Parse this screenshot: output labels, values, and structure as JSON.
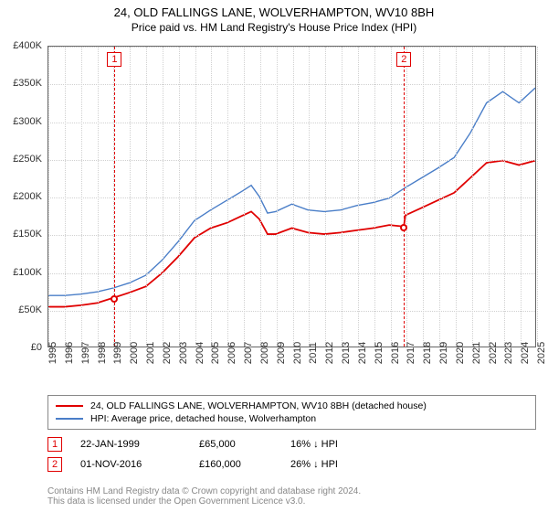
{
  "title": "24, OLD FALLINGS LANE, WOLVERHAMPTON, WV10 8BH",
  "subtitle": "Price paid vs. HM Land Registry's House Price Index (HPI)",
  "chart": {
    "type": "line",
    "background_color": "#ffffff",
    "grid_color": "#d0d0d0",
    "border_color": "#666666",
    "y": {
      "min": 0,
      "max": 400000,
      "step": 50000,
      "labels": [
        "£0",
        "£50K",
        "£100K",
        "£150K",
        "£200K",
        "£250K",
        "£300K",
        "£350K",
        "£400K"
      ],
      "fontsize": 11
    },
    "x": {
      "min": 1995,
      "max": 2025,
      "step": 1,
      "labels": [
        "1995",
        "1996",
        "1997",
        "1998",
        "1999",
        "2000",
        "2001",
        "2002",
        "2003",
        "2004",
        "2005",
        "2006",
        "2007",
        "2008",
        "2009",
        "2010",
        "2011",
        "2012",
        "2013",
        "2014",
        "2015",
        "2016",
        "2017",
        "2018",
        "2019",
        "2020",
        "2021",
        "2022",
        "2023",
        "2024",
        "2025"
      ],
      "fontsize": 11
    },
    "series": [
      {
        "name": "24, OLD FALLINGS LANE, WOLVERHAMPTON, WV10 8BH (detached house)",
        "color": "#e00000",
        "line_width": 1.8,
        "points": [
          [
            1995,
            53000
          ],
          [
            1996,
            53000
          ],
          [
            1997,
            55000
          ],
          [
            1998,
            58000
          ],
          [
            1999,
            65000
          ],
          [
            2000,
            72000
          ],
          [
            2001,
            80000
          ],
          [
            2002,
            98000
          ],
          [
            2003,
            120000
          ],
          [
            2004,
            145000
          ],
          [
            2005,
            158000
          ],
          [
            2006,
            165000
          ],
          [
            2007,
            175000
          ],
          [
            2007.5,
            180000
          ],
          [
            2008,
            170000
          ],
          [
            2008.5,
            150000
          ],
          [
            2009,
            150000
          ],
          [
            2010,
            158000
          ],
          [
            2011,
            152000
          ],
          [
            2012,
            150000
          ],
          [
            2013,
            152000
          ],
          [
            2014,
            155000
          ],
          [
            2015,
            158000
          ],
          [
            2016,
            162000
          ],
          [
            2016.9,
            160000
          ],
          [
            2017,
            175000
          ],
          [
            2018,
            185000
          ],
          [
            2019,
            195000
          ],
          [
            2020,
            205000
          ],
          [
            2021,
            225000
          ],
          [
            2022,
            245000
          ],
          [
            2023,
            248000
          ],
          [
            2024,
            242000
          ],
          [
            2025,
            248000
          ]
        ]
      },
      {
        "name": "HPI: Average price, detached house, Wolverhampton",
        "color": "#4a7ec8",
        "line_width": 1.4,
        "points": [
          [
            1995,
            68000
          ],
          [
            1996,
            68000
          ],
          [
            1997,
            70000
          ],
          [
            1998,
            73000
          ],
          [
            1999,
            78000
          ],
          [
            2000,
            85000
          ],
          [
            2001,
            95000
          ],
          [
            2002,
            115000
          ],
          [
            2003,
            140000
          ],
          [
            2004,
            168000
          ],
          [
            2005,
            182000
          ],
          [
            2006,
            195000
          ],
          [
            2007,
            208000
          ],
          [
            2007.5,
            215000
          ],
          [
            2008,
            200000
          ],
          [
            2008.5,
            178000
          ],
          [
            2009,
            180000
          ],
          [
            2010,
            190000
          ],
          [
            2011,
            182000
          ],
          [
            2012,
            180000
          ],
          [
            2013,
            182000
          ],
          [
            2014,
            188000
          ],
          [
            2015,
            192000
          ],
          [
            2016,
            198000
          ],
          [
            2017,
            212000
          ],
          [
            2018,
            225000
          ],
          [
            2019,
            238000
          ],
          [
            2020,
            252000
          ],
          [
            2021,
            285000
          ],
          [
            2022,
            325000
          ],
          [
            2023,
            340000
          ],
          [
            2024,
            325000
          ],
          [
            2025,
            345000
          ]
        ]
      }
    ],
    "markers": [
      {
        "n": "1",
        "x": 1999.06,
        "color": "#e00000",
        "dot_y": 65000
      },
      {
        "n": "2",
        "x": 2016.83,
        "color": "#e00000",
        "dot_y": 160000
      }
    ]
  },
  "legend": {
    "border_color": "#888888",
    "fontsize": 10.5
  },
  "events": [
    {
      "n": "1",
      "color": "#e00000",
      "date": "22-JAN-1999",
      "price": "£65,000",
      "delta": "16% ↓ HPI"
    },
    {
      "n": "2",
      "color": "#e00000",
      "date": "01-NOV-2016",
      "price": "£160,000",
      "delta": "26% ↓ HPI"
    }
  ],
  "footer": {
    "line1": "Contains HM Land Registry data © Crown copyright and database right 2024.",
    "line2": "This data is licensed under the Open Government Licence v3.0.",
    "color": "#888888",
    "fontsize": 10
  }
}
